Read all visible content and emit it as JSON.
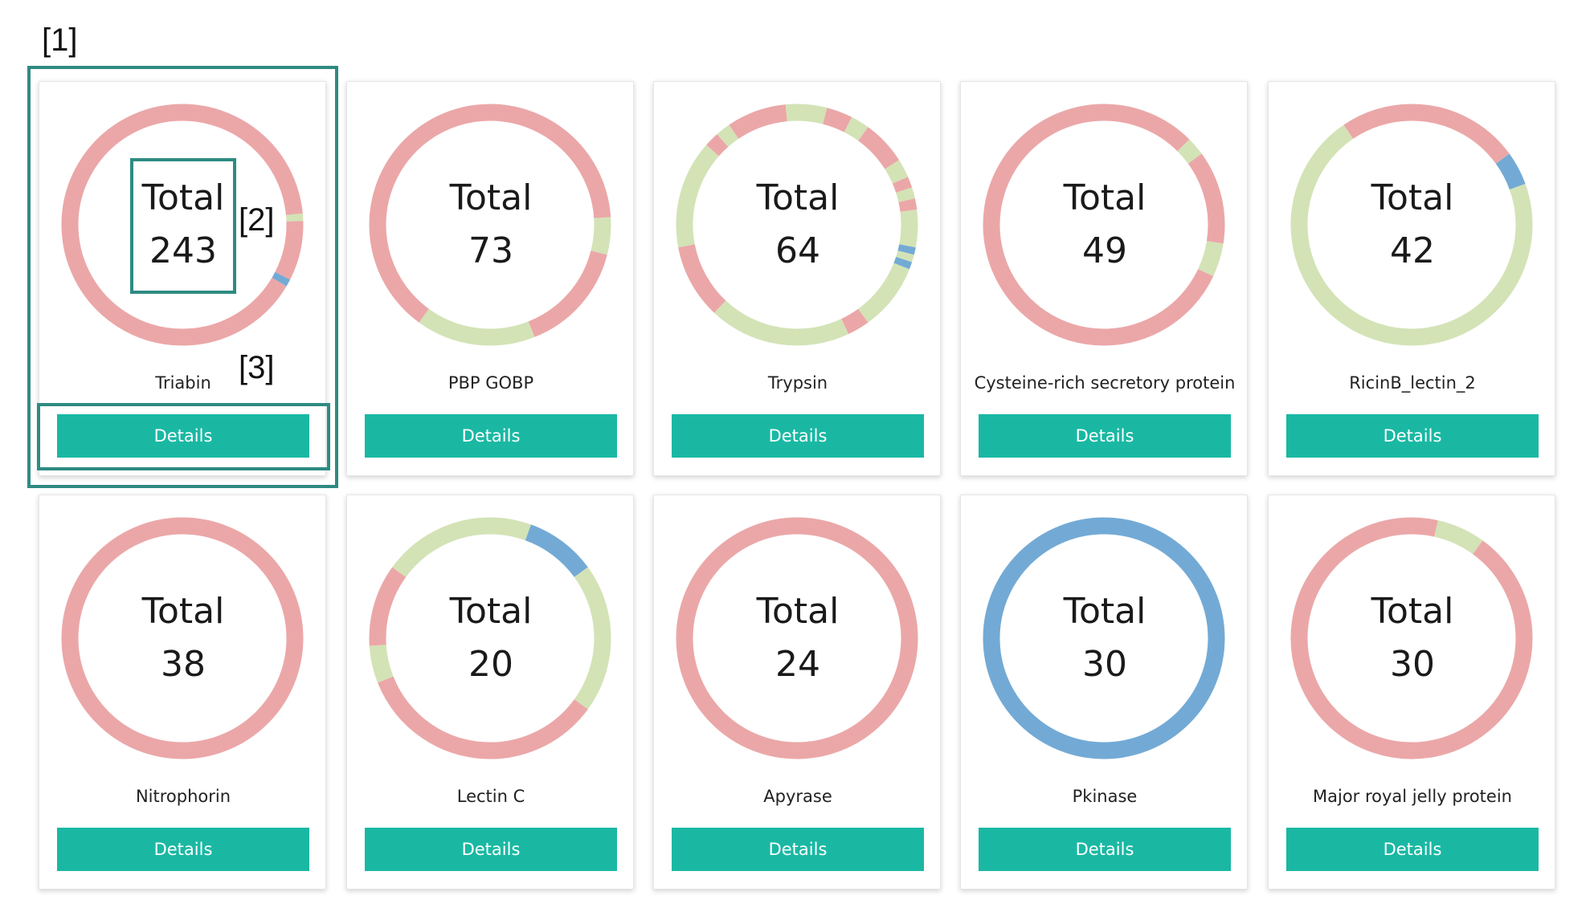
{
  "colors": {
    "pink": "#eba7a8",
    "green": "#d3e3b6",
    "blue": "#73aad5",
    "button": "#1ab8a3",
    "annotation": "#2e8b82"
  },
  "annotations": [
    "[1]",
    "[2]",
    "[3]"
  ],
  "cards": [
    {
      "total_word": "Total",
      "total": "243",
      "name": "Triabin",
      "button": "Details",
      "segments": [
        {
          "color": "pink",
          "from": 0,
          "to": 0.235
        },
        {
          "color": "green",
          "from": 0.235,
          "to": 0.245
        },
        {
          "color": "pink",
          "from": 0.245,
          "to": 0.325
        },
        {
          "color": "blue",
          "from": 0.325,
          "to": 0.335
        },
        {
          "color": "pink",
          "from": 0.335,
          "to": 1
        }
      ]
    },
    {
      "total_word": "Total",
      "total": "73",
      "name": "PBP GOBP",
      "button": "Details",
      "segments": [
        {
          "color": "pink",
          "from": 0,
          "to": 0.24
        },
        {
          "color": "green",
          "from": 0.24,
          "to": 0.29
        },
        {
          "color": "pink",
          "from": 0.29,
          "to": 0.44
        },
        {
          "color": "green",
          "from": 0.44,
          "to": 0.6
        },
        {
          "color": "pink",
          "from": 0.6,
          "to": 1
        }
      ]
    },
    {
      "total_word": "Total",
      "total": "64",
      "name": "Trypsin",
      "button": "Details",
      "segments": [
        {
          "color": "green",
          "from": 0,
          "to": 0.04
        },
        {
          "color": "pink",
          "from": 0.04,
          "to": 0.075
        },
        {
          "color": "green",
          "from": 0.075,
          "to": 0.1
        },
        {
          "color": "pink",
          "from": 0.1,
          "to": 0.16
        },
        {
          "color": "green",
          "from": 0.16,
          "to": 0.185
        },
        {
          "color": "pink",
          "from": 0.185,
          "to": 0.2
        },
        {
          "color": "green",
          "from": 0.2,
          "to": 0.215
        },
        {
          "color": "pink",
          "from": 0.215,
          "to": 0.23
        },
        {
          "color": "green",
          "from": 0.23,
          "to": 0.28
        },
        {
          "color": "blue",
          "from": 0.28,
          "to": 0.29
        },
        {
          "color": "green",
          "from": 0.29,
          "to": 0.3
        },
        {
          "color": "blue",
          "from": 0.3,
          "to": 0.31
        },
        {
          "color": "green",
          "from": 0.31,
          "to": 0.4
        },
        {
          "color": "pink",
          "from": 0.4,
          "to": 0.43
        },
        {
          "color": "green",
          "from": 0.43,
          "to": 0.62
        },
        {
          "color": "pink",
          "from": 0.62,
          "to": 0.72
        },
        {
          "color": "green",
          "from": 0.72,
          "to": 0.865
        },
        {
          "color": "pink",
          "from": 0.865,
          "to": 0.885
        },
        {
          "color": "green",
          "from": 0.885,
          "to": 0.905
        },
        {
          "color": "pink",
          "from": 0.905,
          "to": 0.985
        },
        {
          "color": "green",
          "from": 0.985,
          "to": 1
        }
      ]
    },
    {
      "total_word": "Total",
      "total": "49",
      "name": "Cysteine-rich secretory protein",
      "button": "Details",
      "segments": [
        {
          "color": "pink",
          "from": 0,
          "to": 0.125
        },
        {
          "color": "green",
          "from": 0.125,
          "to": 0.15
        },
        {
          "color": "pink",
          "from": 0.15,
          "to": 0.275
        },
        {
          "color": "green",
          "from": 0.275,
          "to": 0.32
        },
        {
          "color": "pink",
          "from": 0.32,
          "to": 1
        }
      ]
    },
    {
      "total_word": "Total",
      "total": "42",
      "name": "RicinB_lectin_2",
      "button": "Details",
      "segments": [
        {
          "color": "pink",
          "from": 0,
          "to": 0.15
        },
        {
          "color": "blue",
          "from": 0.15,
          "to": 0.195
        },
        {
          "color": "green",
          "from": 0.195,
          "to": 0.905
        },
        {
          "color": "pink",
          "from": 0.905,
          "to": 1
        }
      ]
    },
    {
      "total_word": "Total",
      "total": "38",
      "name": "Nitrophorin",
      "button": "Details",
      "segments": [
        {
          "color": "pink",
          "from": 0,
          "to": 1
        }
      ]
    },
    {
      "total_word": "Total",
      "total": "20",
      "name": "Lectin C",
      "button": "Details",
      "segments": [
        {
          "color": "green",
          "from": 0,
          "to": 0.055
        },
        {
          "color": "blue",
          "from": 0.055,
          "to": 0.15
        },
        {
          "color": "green",
          "from": 0.15,
          "to": 0.35
        },
        {
          "color": "pink",
          "from": 0.35,
          "to": 0.69
        },
        {
          "color": "green",
          "from": 0.69,
          "to": 0.74
        },
        {
          "color": "pink",
          "from": 0.74,
          "to": 0.85
        },
        {
          "color": "green",
          "from": 0.85,
          "to": 1
        }
      ]
    },
    {
      "total_word": "Total",
      "total": "24",
      "name": "Apyrase",
      "button": "Details",
      "segments": [
        {
          "color": "pink",
          "from": 0,
          "to": 1
        }
      ]
    },
    {
      "total_word": "Total",
      "total": "30",
      "name": "Pkinase",
      "button": "Details",
      "segments": [
        {
          "color": "blue",
          "from": 0,
          "to": 1
        }
      ]
    },
    {
      "total_word": "Total",
      "total": "30",
      "name": "Major royal jelly protein",
      "button": "Details",
      "segments": [
        {
          "color": "pink",
          "from": 0,
          "to": 0.035
        },
        {
          "color": "green",
          "from": 0.035,
          "to": 0.1
        },
        {
          "color": "pink",
          "from": 0.1,
          "to": 1
        }
      ]
    }
  ]
}
